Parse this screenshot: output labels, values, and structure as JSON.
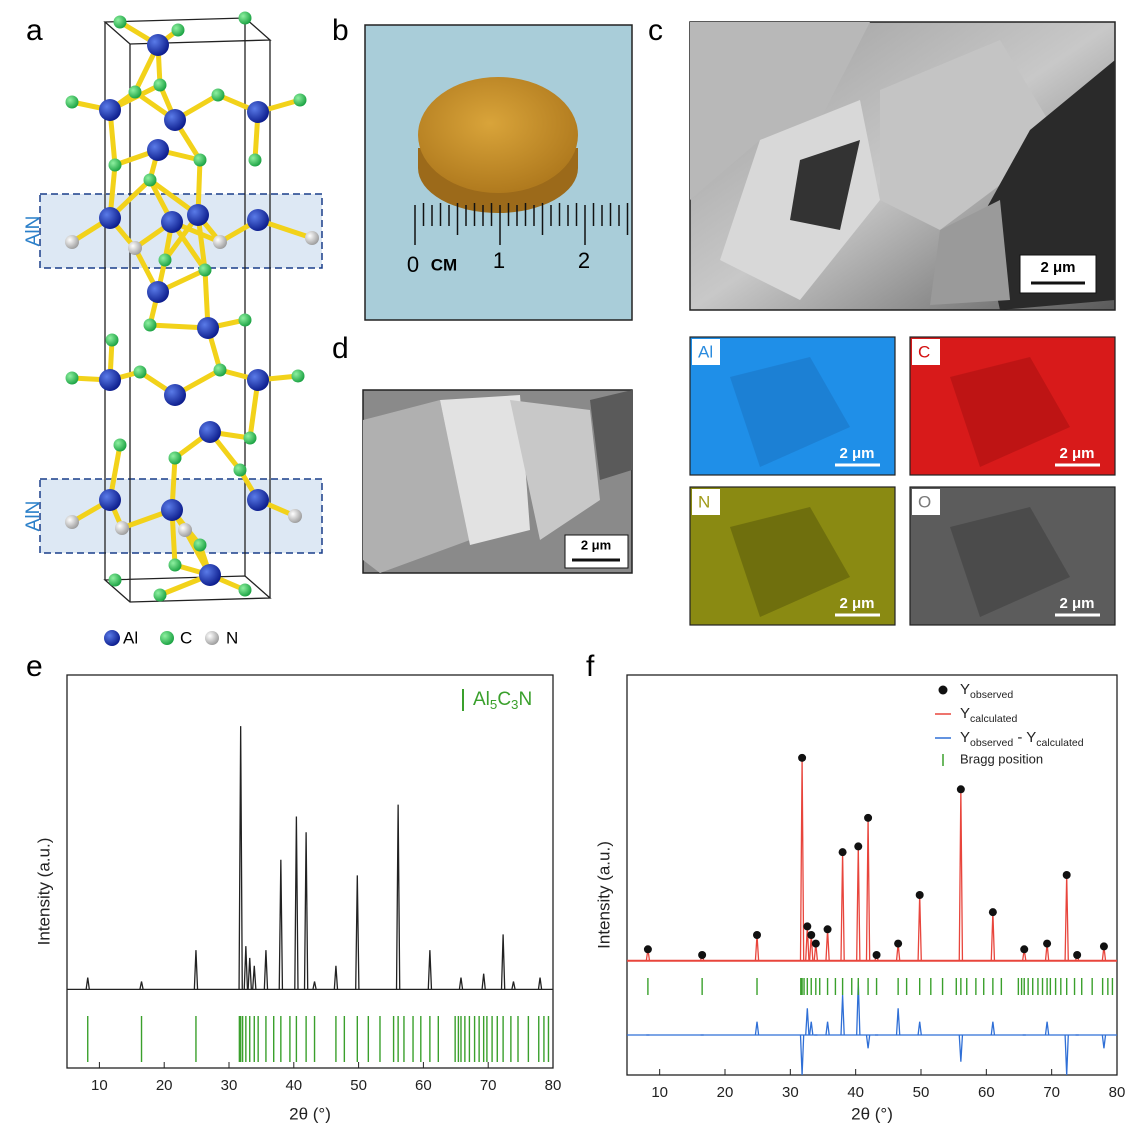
{
  "panels": {
    "a": "a",
    "b": "b",
    "c": "c",
    "d": "d",
    "e": "e",
    "f": "f"
  },
  "structure": {
    "layer_labels": [
      "AlN",
      "AlN"
    ],
    "legend": [
      "Al",
      "C",
      "N"
    ]
  },
  "photo": {
    "ruler_labels": [
      "0",
      "CM",
      "1",
      "2"
    ]
  },
  "sem": {
    "scale_bar": "2 μm"
  },
  "eds": {
    "maps": [
      {
        "label": "Al",
        "scale_bar": "2 μm"
      },
      {
        "label": "C",
        "scale_bar": "2 μm"
      },
      {
        "label": "N",
        "scale_bar": "2 μm"
      },
      {
        "label": "O",
        "scale_bar": "2 μm"
      }
    ]
  },
  "sem_d": {
    "scale_bar": "2 μm"
  },
  "chart_data": [
    {
      "type": "peaks",
      "x_label": "2θ (°)",
      "y_label": "Intensity (a.u.)",
      "xlim": [
        5,
        80
      ],
      "xticks": [
        10,
        20,
        30,
        40,
        50,
        60,
        70,
        80
      ],
      "ylim": [
        -20,
        80
      ],
      "series": [
        {
          "color": "#222222",
          "x": [
            8.2,
            16.5,
            24.9,
            31.8,
            32.6,
            33.2,
            33.9,
            35.7,
            38.0,
            40.4,
            41.9,
            43.2,
            46.5,
            49.8,
            56.1,
            61.0,
            65.8,
            69.3,
            72.3,
            73.9,
            78.0
          ],
          "values": [
            3,
            2,
            10,
            67,
            11,
            8,
            6,
            10,
            33,
            44,
            40,
            2,
            6,
            29,
            47,
            10,
            3,
            4,
            14,
            2,
            3
          ]
        }
      ],
      "bragg": {
        "name": [
          "Al",
          "5",
          "C",
          "3",
          "N"
        ],
        "color": "#3aa02c",
        "x": [
          8.2,
          16.5,
          24.9,
          31.6,
          31.8,
          32.1,
          32.6,
          33.2,
          33.9,
          34.5,
          35.7,
          36.9,
          38.0,
          39.4,
          40.4,
          41.9,
          43.2,
          46.5,
          47.8,
          49.8,
          51.5,
          53.3,
          55.4,
          56.1,
          57.0,
          58.4,
          59.6,
          61.0,
          62.3,
          64.9,
          65.4,
          65.8,
          66.4,
          67.1,
          67.9,
          68.6,
          69.3,
          69.8,
          70.6,
          71.4,
          72.3,
          73.5,
          74.6,
          76.2,
          77.8,
          78.6,
          79.3
        ]
      }
    },
    {
      "type": "refinement",
      "x_label": "2θ (°)",
      "y_label": "Intensity (a.u.)",
      "xlim": [
        5,
        80
      ],
      "xticks": [
        10,
        20,
        30,
        40,
        50,
        60,
        70,
        80
      ],
      "ylim": [
        -40,
        100
      ],
      "y2lim": [
        -3,
        27
      ],
      "x": [
        8.2,
        16.5,
        24.9,
        31.8,
        32.6,
        33.2,
        33.9,
        35.7,
        38.0,
        40.4,
        41.9,
        43.2,
        46.5,
        49.8,
        56.1,
        61.0,
        65.8,
        69.3,
        72.3,
        73.9,
        78.0
      ],
      "series": [
        {
          "name": [
            "Y",
            "observed"
          ],
          "color": "#111111",
          "values": [
            4,
            2,
            9,
            71,
            12,
            9,
            6,
            11,
            38,
            40,
            50,
            2,
            6,
            23,
            60,
            17,
            4,
            6,
            30,
            2,
            5
          ]
        },
        {
          "name": [
            "Y",
            "calculated"
          ],
          "color": "#e8453c",
          "values": [
            4,
            2,
            9,
            71,
            12,
            9,
            6,
            11,
            38,
            40,
            50,
            2,
            6,
            23,
            60,
            17,
            4,
            6,
            30,
            2,
            5
          ]
        },
        {
          "name": [
            "Y",
            "observed",
            " - Y",
            "calculated"
          ],
          "color": "#2f6fd6",
          "axis": "y2",
          "values": [
            0,
            0,
            1,
            -3,
            2,
            1,
            0,
            1,
            3,
            4,
            -1,
            0,
            2,
            1,
            -2,
            1,
            0,
            1,
            -3,
            0,
            -1
          ]
        }
      ],
      "bragg": {
        "name": [
          "Bragg position"
        ],
        "color": "#3aa02c",
        "x": [
          8.2,
          16.5,
          24.9,
          31.6,
          31.8,
          32.1,
          32.6,
          33.2,
          33.9,
          34.5,
          35.7,
          36.9,
          38.0,
          39.4,
          40.4,
          41.9,
          43.2,
          46.5,
          47.8,
          49.8,
          51.5,
          53.3,
          55.4,
          56.1,
          57.0,
          58.4,
          59.6,
          61.0,
          62.3,
          64.9,
          65.4,
          65.8,
          66.4,
          67.1,
          67.9,
          68.6,
          69.3,
          69.8,
          70.6,
          71.4,
          72.3,
          73.5,
          74.6,
          76.2,
          77.8,
          78.6,
          79.3
        ]
      }
    }
  ]
}
